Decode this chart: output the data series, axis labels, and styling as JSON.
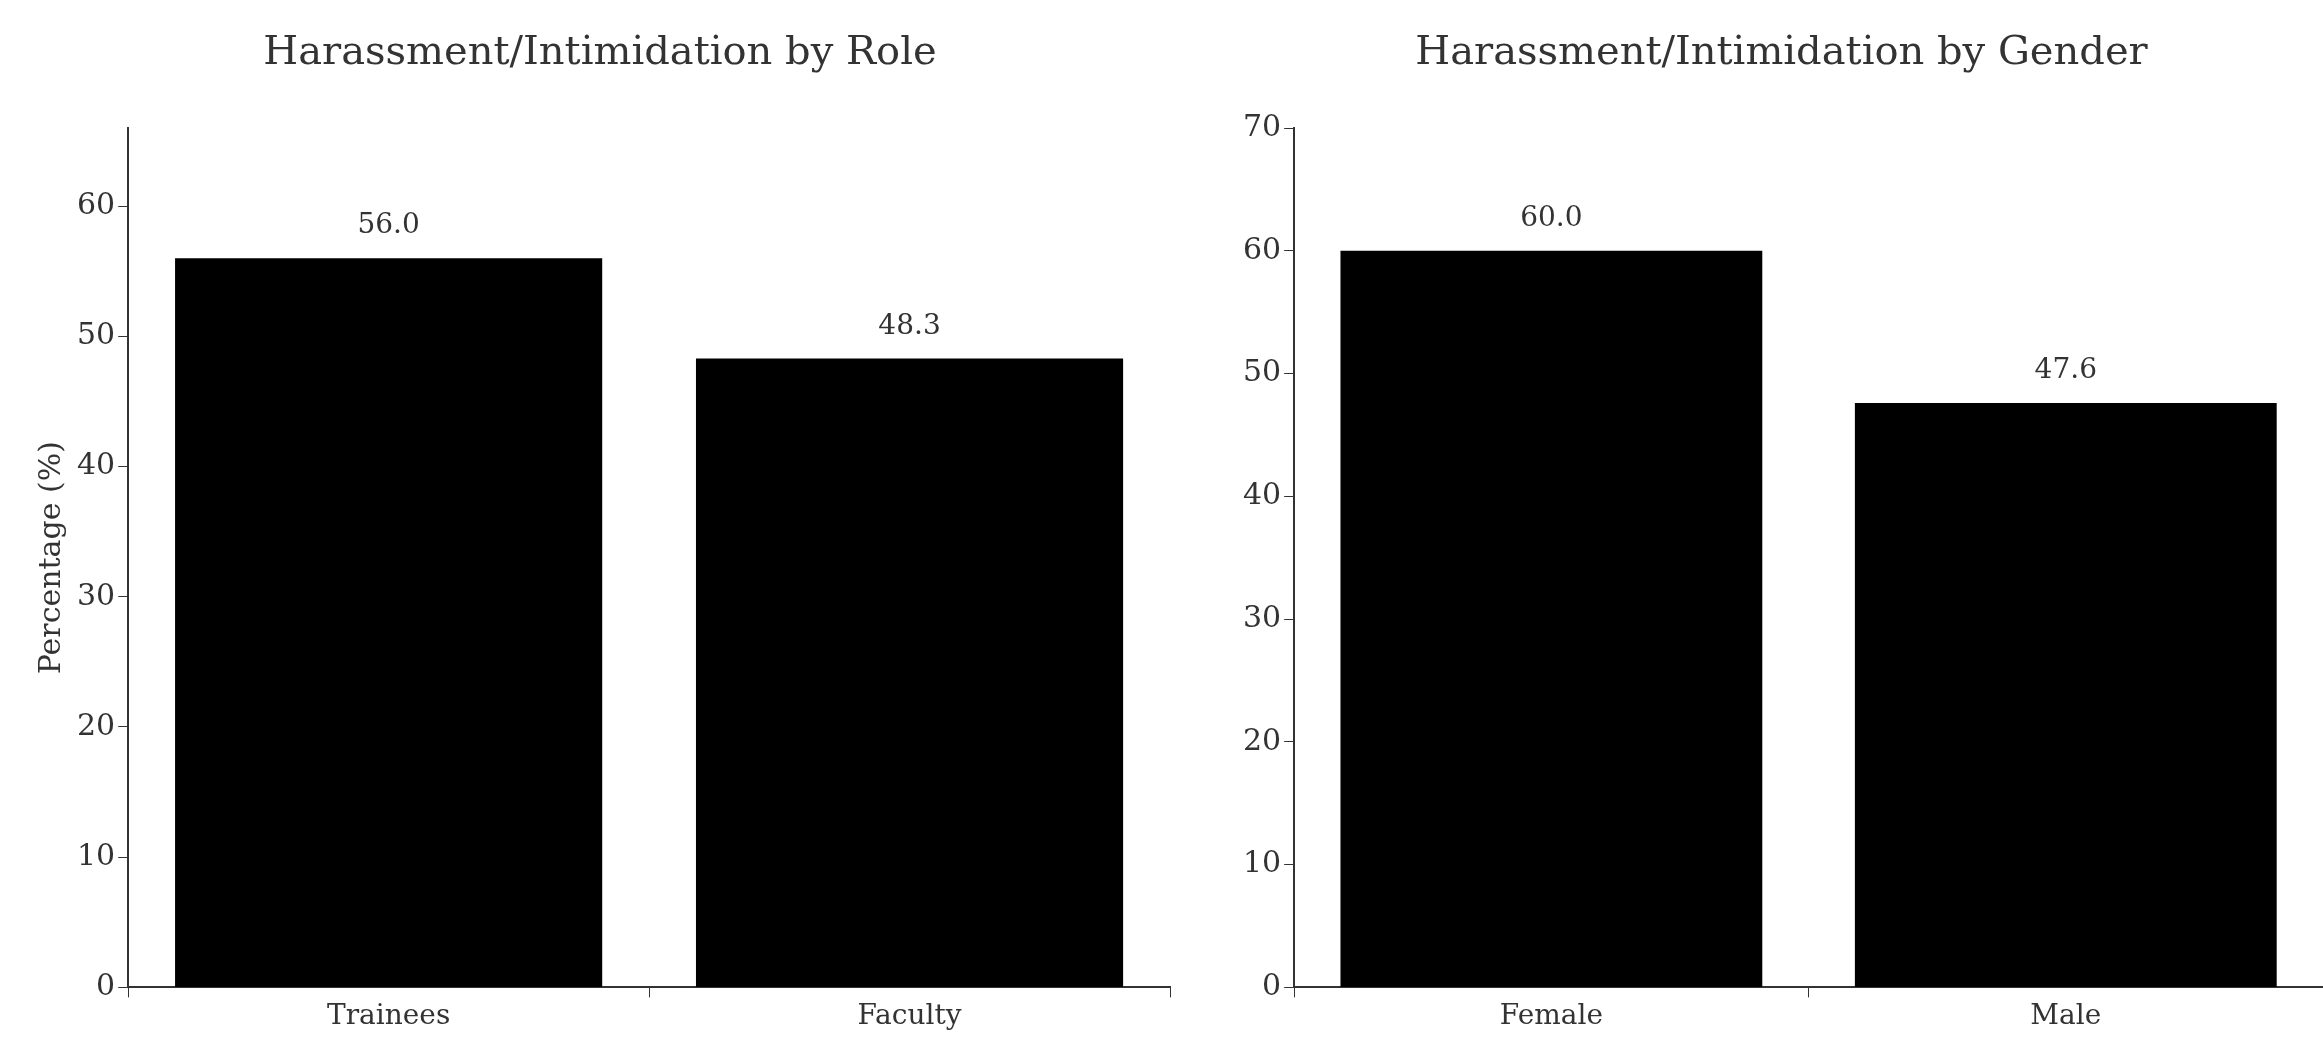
{
  "chart_data": [
    {
      "type": "bar",
      "title": "Harassment/Intimidation by Role",
      "ylabel": "Percentage (%)",
      "categories": [
        "Trainees",
        "Faculty"
      ],
      "series": [
        {
          "color": "#000000",
          "values": [
            56.0,
            48.3
          ],
          "value_labels": [
            "56.0",
            "48.3"
          ]
        }
      ],
      "ylim": [
        0,
        66
      ],
      "yticks": [
        0,
        10,
        20,
        30,
        40,
        50,
        60
      ],
      "grid": false,
      "legend": false
    },
    {
      "type": "bar",
      "title": "Harassment/Intimidation by Gender",
      "categories": [
        "Female",
        "Male"
      ],
      "series": [
        {
          "color": "#000000",
          "values": [
            60.0,
            47.6
          ],
          "value_labels": [
            "60.0",
            "47.6"
          ]
        }
      ],
      "ylim": [
        0,
        70
      ],
      "yticks": [
        0,
        10,
        20,
        30,
        40,
        50,
        60,
        70
      ],
      "grid": false,
      "legend": false
    }
  ]
}
